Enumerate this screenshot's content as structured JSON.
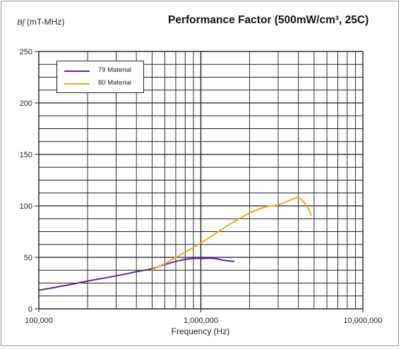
{
  "chart_data": {
    "type": "line",
    "title": "Performance Factor (500mW/cm³, 25C)",
    "ylabel_var": "Bf",
    "ylabel_unit": "(mT-MHz)",
    "xlabel": "Frequency (Hz)",
    "x_scale": "log",
    "xlim": [
      100000,
      10000000
    ],
    "ylim": [
      0,
      250
    ],
    "y_ticks": [
      0,
      50,
      100,
      150,
      200,
      250
    ],
    "x_tick_labels": [
      "100,000",
      "1,000,000",
      "10,000,000"
    ],
    "x_ticks": [
      100000,
      1000000,
      10000000
    ],
    "grid": true,
    "legend_position": "top-left",
    "series": [
      {
        "name": "79 Material",
        "color": "#5b2a8e",
        "points": [
          [
            100000,
            18
          ],
          [
            150000,
            23
          ],
          [
            200000,
            27
          ],
          [
            300000,
            32
          ],
          [
            400000,
            36
          ],
          [
            500000,
            39
          ],
          [
            600000,
            43
          ],
          [
            700000,
            46
          ],
          [
            800000,
            48
          ],
          [
            900000,
            49
          ],
          [
            1000000,
            49
          ],
          [
            1200000,
            49
          ],
          [
            1400000,
            47
          ],
          [
            1600000,
            46
          ]
        ]
      },
      {
        "name": "80 Material",
        "color": "#f5a623",
        "points": [
          [
            500000,
            38
          ],
          [
            600000,
            44
          ],
          [
            700000,
            50
          ],
          [
            800000,
            55
          ],
          [
            1000000,
            64
          ],
          [
            1200000,
            72
          ],
          [
            1500000,
            82
          ],
          [
            2000000,
            93
          ],
          [
            2500000,
            99
          ],
          [
            3000000,
            101
          ],
          [
            3500000,
            105
          ],
          [
            4000000,
            108
          ],
          [
            4500000,
            100
          ],
          [
            4800000,
            91
          ]
        ]
      }
    ]
  }
}
